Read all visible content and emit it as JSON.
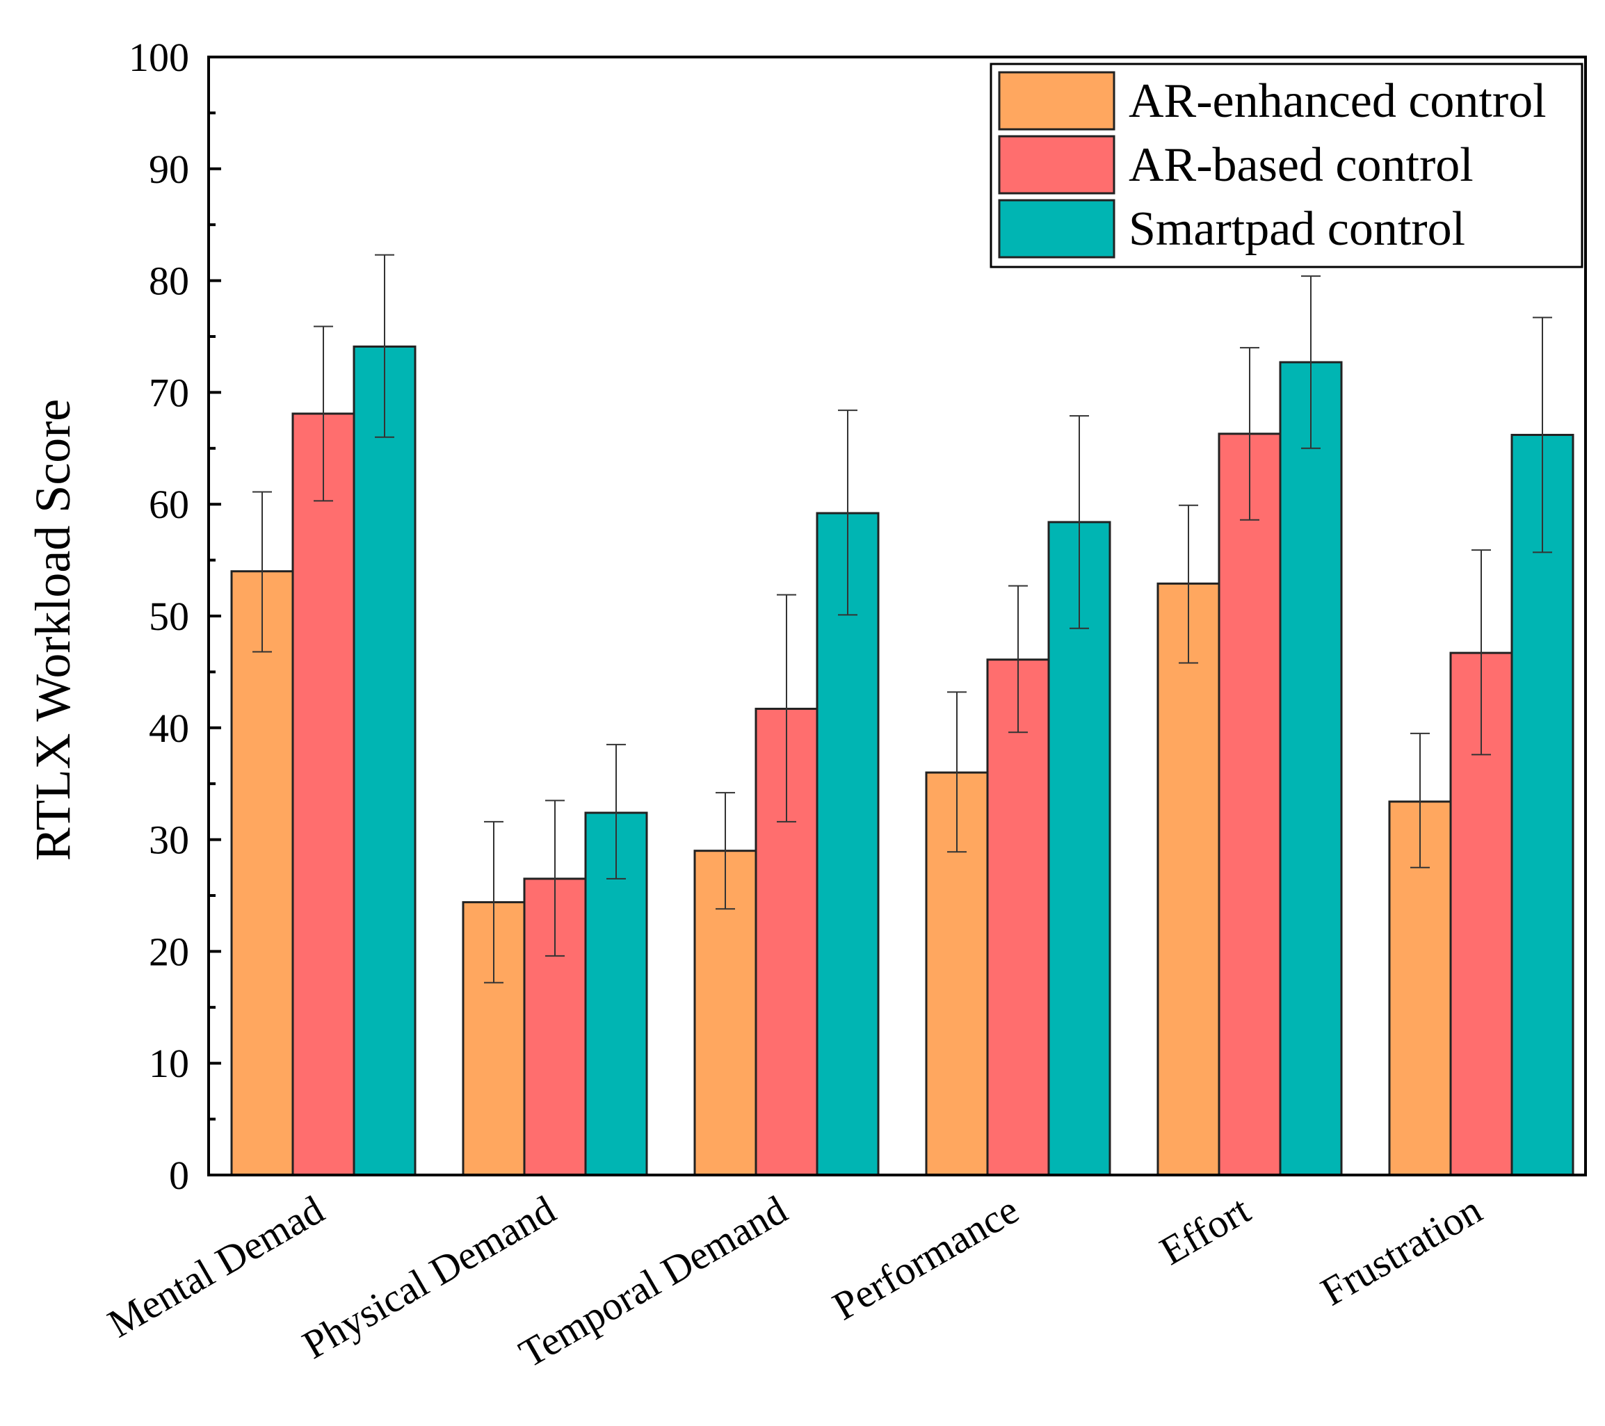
{
  "chart_data": {
    "type": "bar",
    "title": "",
    "xlabel": "",
    "ylabel": "RTLX Workload Score",
    "ylim": [
      0,
      100
    ],
    "yticks": [
      0,
      10,
      20,
      30,
      40,
      50,
      60,
      70,
      80,
      90,
      100
    ],
    "categories": [
      "Mental Demad",
      "Physical Demand",
      "Temporal Demand",
      "Performance",
      "Effort",
      "Frustration"
    ],
    "legend_position": "top-right",
    "series": [
      {
        "name": "AR-enhanced control",
        "color": "#FFA75F",
        "values": [
          54.0,
          24.4,
          29.0,
          36.0,
          52.9,
          33.4
        ],
        "error_low": [
          46.8,
          17.2,
          23.8,
          28.9,
          45.8,
          27.5
        ],
        "error_high": [
          61.1,
          31.6,
          34.2,
          43.2,
          59.9,
          39.5
        ]
      },
      {
        "name": "AR-based control",
        "color": "#FF6E6E",
        "values": [
          68.1,
          26.5,
          41.7,
          46.1,
          66.3,
          46.7
        ],
        "error_low": [
          60.3,
          19.6,
          31.6,
          39.6,
          58.6,
          37.6
        ],
        "error_high": [
          75.9,
          33.5,
          51.9,
          52.7,
          74.0,
          55.9
        ]
      },
      {
        "name": "Smartpad control",
        "color": "#00B5B3",
        "values": [
          74.1,
          32.4,
          59.2,
          58.4,
          72.7,
          66.2
        ],
        "error_low": [
          66.0,
          26.5,
          50.1,
          48.9,
          65.0,
          55.7
        ],
        "error_high": [
          82.3,
          38.5,
          68.4,
          67.9,
          80.4,
          76.7
        ]
      }
    ]
  }
}
